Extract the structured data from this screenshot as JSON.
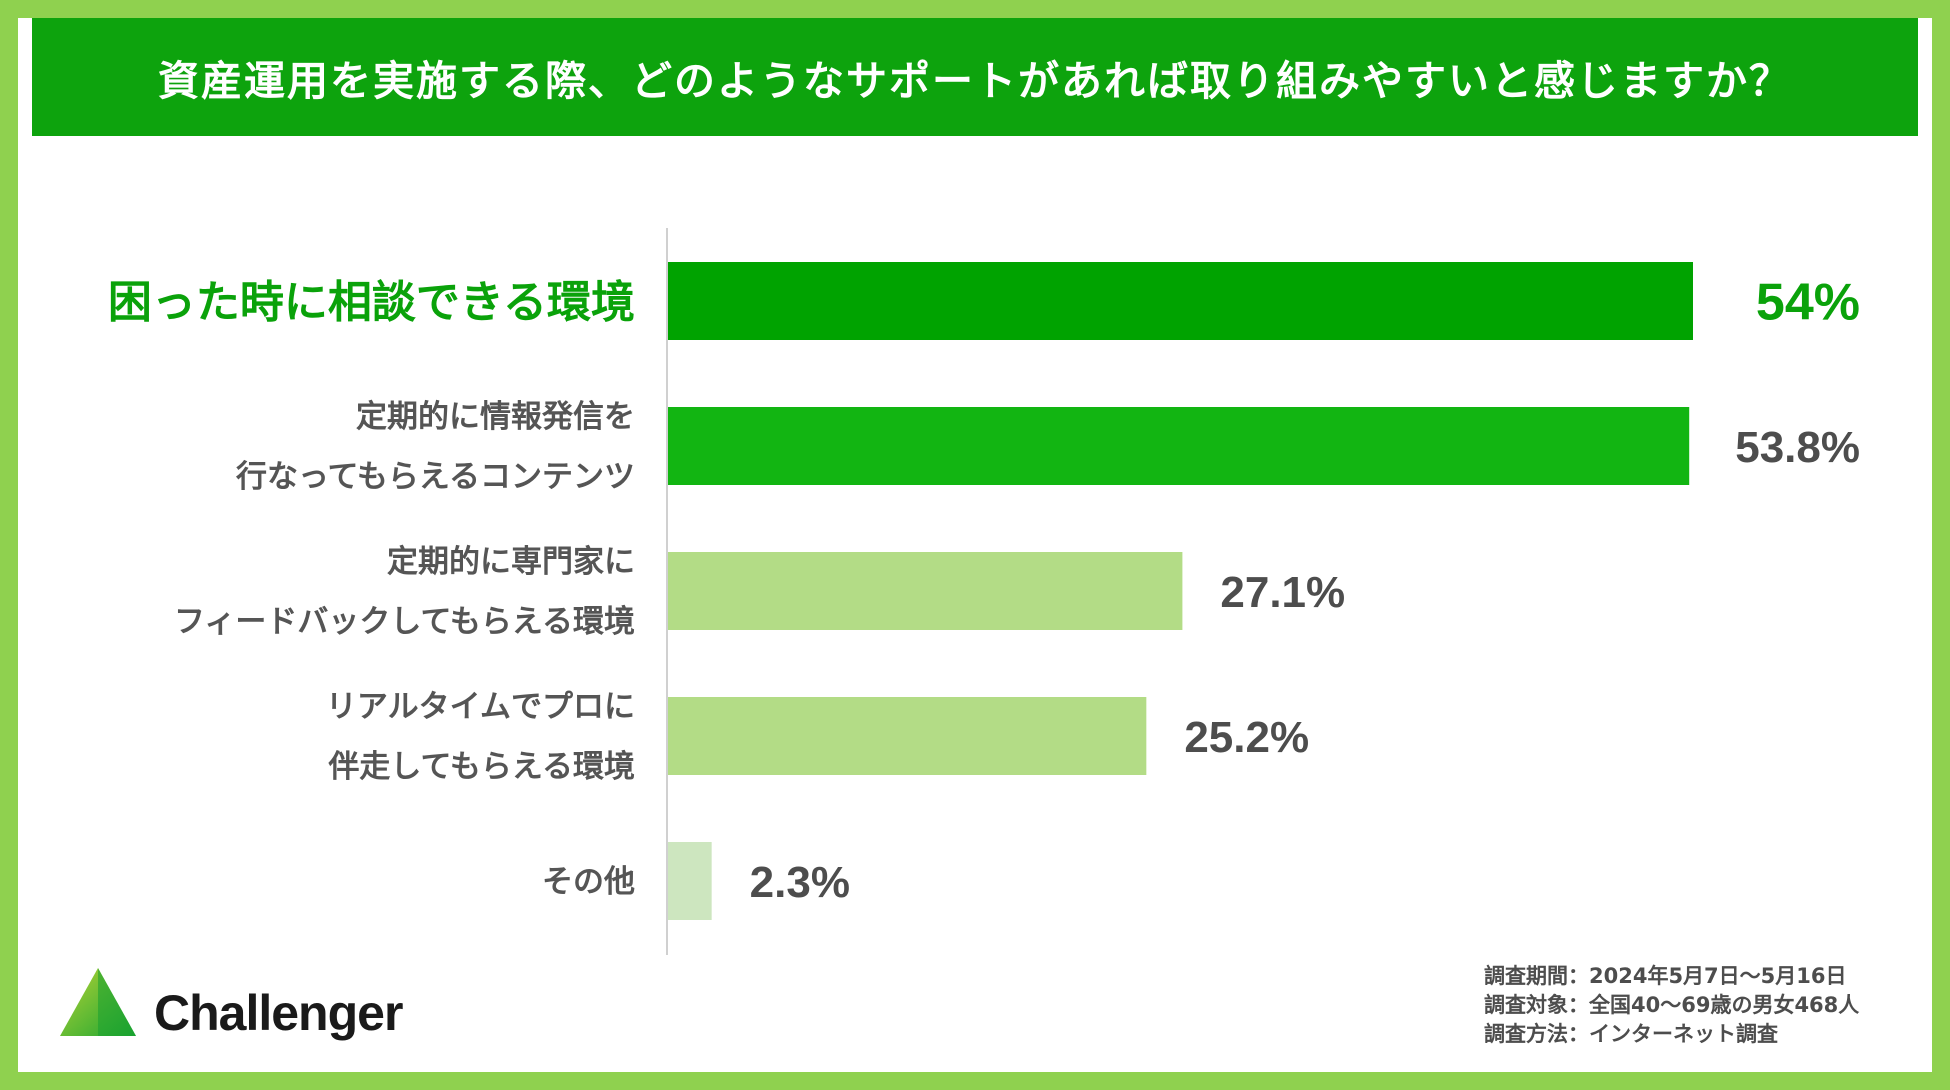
{
  "title": "資産運用を実施する際、どのようなサポートがあれば取り組みやすいと感じますか？",
  "chart_data": {
    "type": "bar",
    "orientation": "horizontal",
    "title": "資産運用を実施する際、どのようなサポートがあれば取り組みやすいと感じますか？",
    "xlabel": "",
    "ylabel": "",
    "xlim": [
      0,
      60
    ],
    "grid": false,
    "categories": [
      [
        "困った時に相談できる環境"
      ],
      [
        "定期的に情報発信を",
        "行なってもらえるコンテンツ"
      ],
      [
        "定期的に専門家に",
        "フィードバックしてもらえる環境"
      ],
      [
        "リアルタイムでプロに",
        "伴走してもらえる環境"
      ],
      [
        "その他"
      ]
    ],
    "values": [
      54,
      53.8,
      27.1,
      25.2,
      2.3
    ],
    "value_labels": [
      "54%",
      "53.8%",
      "27.1%",
      "25.2%",
      "2.3%"
    ],
    "bar_colors": [
      "#00a300",
      "#12b512",
      "#b3dc86",
      "#b3dc86",
      "#cde6bf"
    ],
    "highlight_index": 0
  },
  "logo": {
    "text": "Challenger",
    "icon": "green-triangle-icon"
  },
  "survey": [
    "調査期間：2024年5月7日〜5月16日",
    "調査対象：全国40〜69歳の男女468人",
    "調査方法：インターネット調査"
  ]
}
